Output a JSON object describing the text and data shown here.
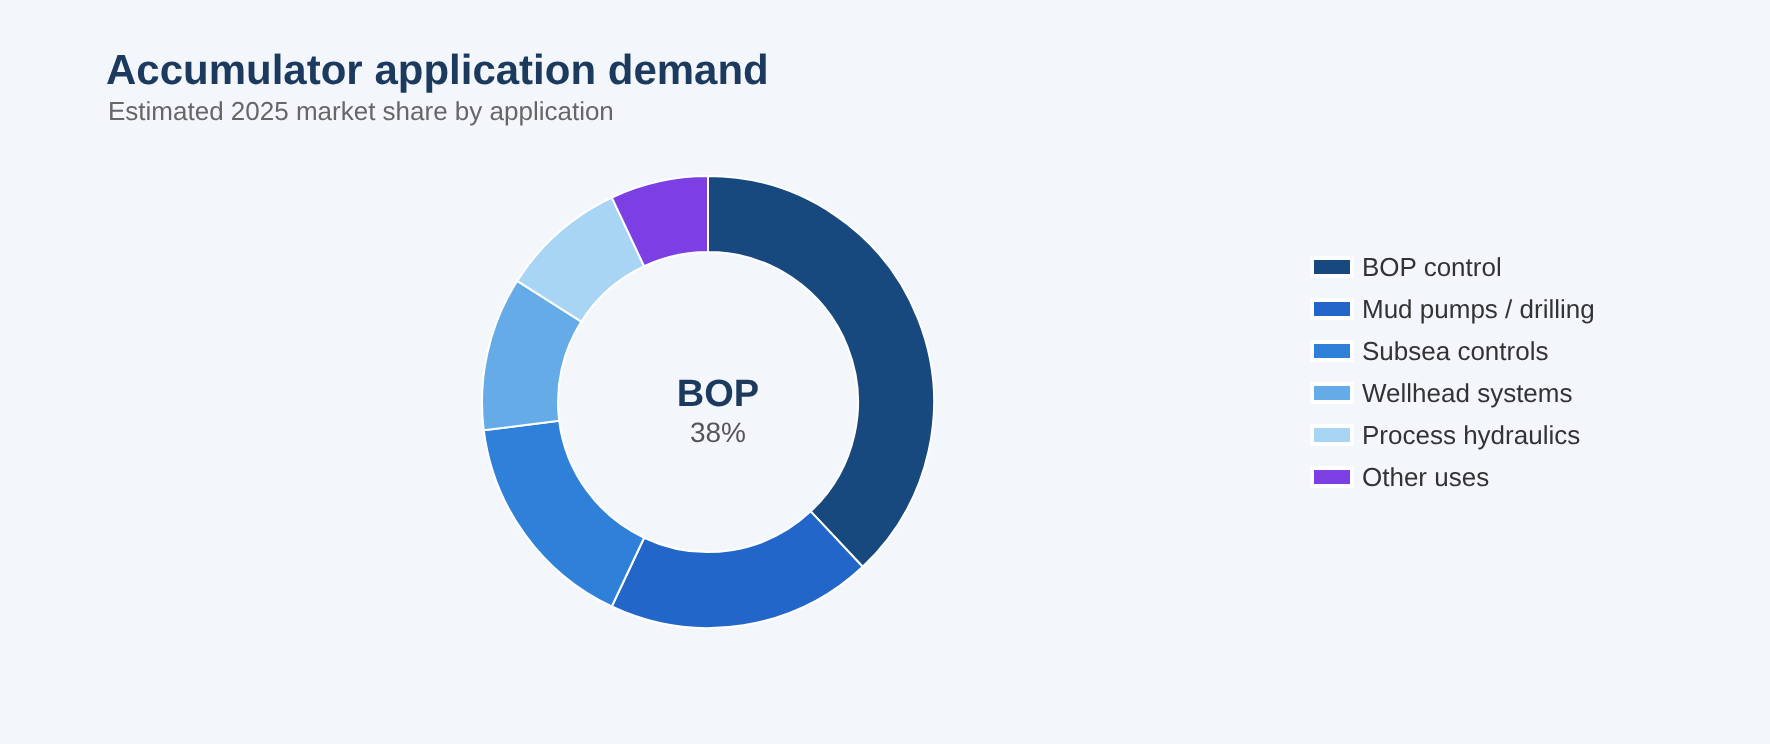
{
  "chart_data": {
    "type": "donut",
    "title": "Accumulator application demand",
    "subtitle": "Estimated 2025 market share by application",
    "categories": [
      "BOP control",
      "Mud pumps / drilling",
      "Subsea controls",
      "Wellhead systems",
      "Process hydraulics",
      "Other uses"
    ],
    "values": [
      38,
      19,
      16,
      11,
      9,
      7
    ],
    "colors": [
      "#17497f",
      "#2166c8",
      "#2f80d9",
      "#64abe8",
      "#a9d5f4",
      "#7b3fe4"
    ],
    "annotations": [
      "BOP",
      "38%"
    ],
    "legend": "right"
  }
}
